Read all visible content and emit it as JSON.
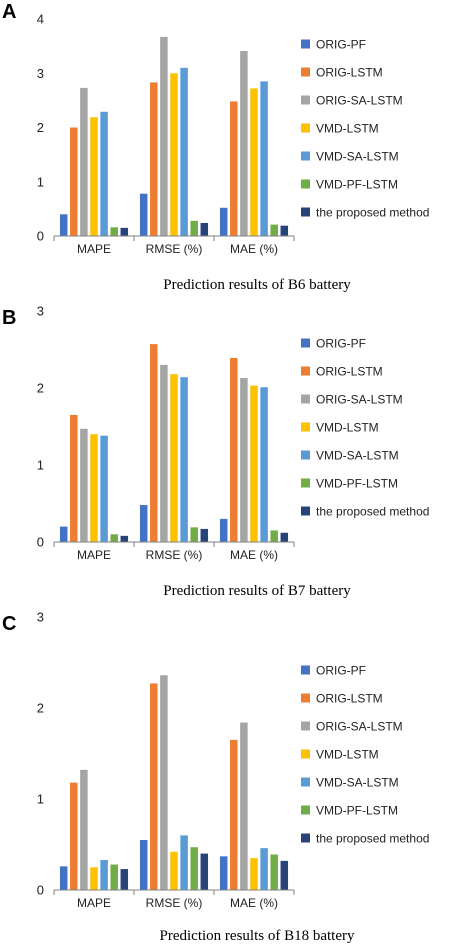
{
  "series_colors": [
    "#4472C4",
    "#ED7D31",
    "#A5A5A5",
    "#FFC000",
    "#5B9BD5",
    "#70AD47",
    "#264478"
  ],
  "chart_data": [
    {
      "panel": "A",
      "type": "bar",
      "categories": [
        "MAPE",
        "RMSE (%)",
        "MAE (%)"
      ],
      "ylim": [
        0,
        4
      ],
      "yticks": [
        0,
        1,
        2,
        3,
        4
      ],
      "caption": "Prediction results of B6 battery",
      "legend_position": "right",
      "series": [
        {
          "name": "ORIG-PF",
          "values": [
            0.4,
            0.78,
            0.52
          ]
        },
        {
          "name": "ORIG-LSTM",
          "values": [
            2.0,
            2.83,
            2.48
          ]
        },
        {
          "name": "ORIG-SA-LSTM",
          "values": [
            2.73,
            3.67,
            3.41
          ]
        },
        {
          "name": "VMD-LSTM",
          "values": [
            2.19,
            3.0,
            2.72
          ]
        },
        {
          "name": "VMD-SA-LSTM",
          "values": [
            2.29,
            3.1,
            2.85
          ]
        },
        {
          "name": "VMD-PF-LSTM",
          "values": [
            0.16,
            0.28,
            0.21
          ]
        },
        {
          "name": "the proposed method",
          "values": [
            0.15,
            0.24,
            0.19
          ]
        }
      ]
    },
    {
      "panel": "B",
      "type": "bar",
      "categories": [
        "MAPE",
        "RMSE (%)",
        "MAE (%)"
      ],
      "ylim": [
        0,
        3
      ],
      "yticks": [
        0,
        1,
        2,
        3
      ],
      "caption": "Prediction results of B7 battery",
      "legend_position": "right",
      "series": [
        {
          "name": "ORIG-PF",
          "values": [
            0.2,
            0.48,
            0.3
          ]
        },
        {
          "name": "ORIG-LSTM",
          "values": [
            1.65,
            2.57,
            2.39
          ]
        },
        {
          "name": "ORIG-SA-LSTM",
          "values": [
            1.47,
            2.3,
            2.13
          ]
        },
        {
          "name": "VMD-LSTM",
          "values": [
            1.4,
            2.18,
            2.03
          ]
        },
        {
          "name": "VMD-SA-LSTM",
          "values": [
            1.38,
            2.14,
            2.01
          ]
        },
        {
          "name": "VMD-PF-LSTM",
          "values": [
            0.1,
            0.19,
            0.15
          ]
        },
        {
          "name": "the proposed method",
          "values": [
            0.08,
            0.17,
            0.12
          ]
        }
      ]
    },
    {
      "panel": "C",
      "type": "bar",
      "categories": [
        "MAPE",
        "RMSE (%)",
        "MAE (%)"
      ],
      "ylim": [
        0,
        3
      ],
      "yticks": [
        0,
        1,
        2,
        3
      ],
      "caption": "Prediction results of B18 battery",
      "legend_position": "right",
      "series": [
        {
          "name": "ORIG-PF",
          "values": [
            0.26,
            0.55,
            0.37
          ]
        },
        {
          "name": "ORIG-LSTM",
          "values": [
            1.18,
            2.27,
            1.65
          ]
        },
        {
          "name": "ORIG-SA-LSTM",
          "values": [
            1.32,
            2.36,
            1.84
          ]
        },
        {
          "name": "VMD-LSTM",
          "values": [
            0.25,
            0.42,
            0.35
          ]
        },
        {
          "name": "VMD-SA-LSTM",
          "values": [
            0.33,
            0.6,
            0.46
          ]
        },
        {
          "name": "VMD-PF-LSTM",
          "values": [
            0.28,
            0.47,
            0.39
          ]
        },
        {
          "name": "the proposed method",
          "values": [
            0.23,
            0.4,
            0.32
          ]
        }
      ]
    }
  ]
}
